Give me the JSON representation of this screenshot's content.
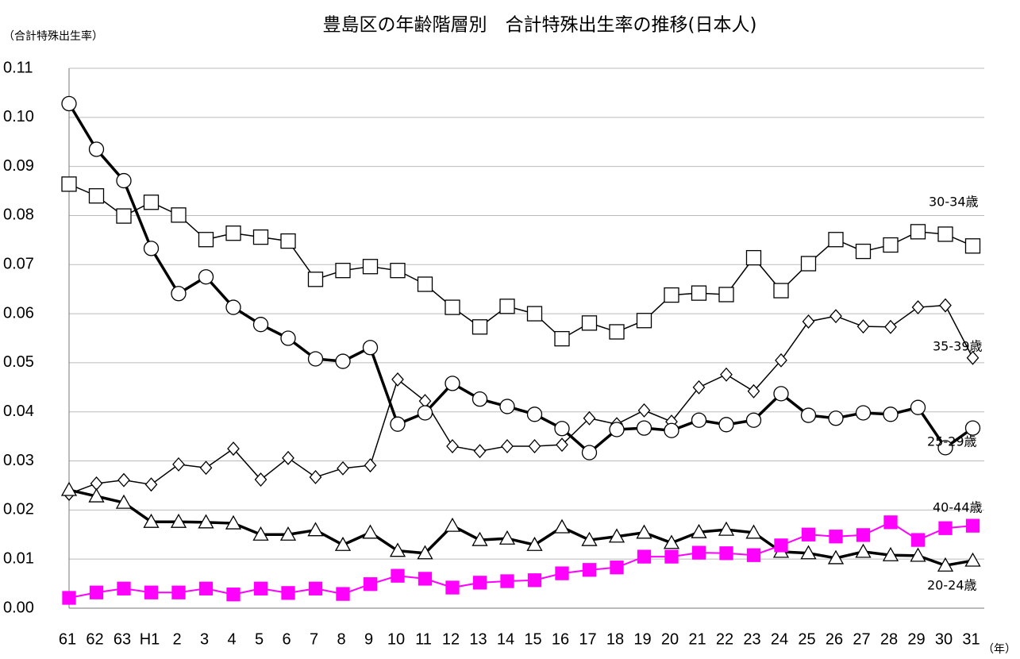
{
  "chart_data": {
    "type": "line",
    "title": "豊島区の年齢階層別　合計特殊出生率の推移(日本人)",
    "y_label": "（合計特殊出生率）",
    "x_label": "（年）",
    "categories": [
      "61",
      "62",
      "63",
      "H1",
      "2",
      "3",
      "4",
      "5",
      "6",
      "7",
      "8",
      "9",
      "10",
      "11",
      "12",
      "13",
      "14",
      "15",
      "16",
      "17",
      "18",
      "19",
      "20",
      "21",
      "22",
      "23",
      "24",
      "25",
      "26",
      "27",
      "28",
      "29",
      "30",
      "31"
    ],
    "ylim": [
      0,
      0.11
    ],
    "yticks": [
      {
        "value": 0,
        "label": "0.00"
      },
      0.01,
      0.02,
      0.03,
      0.04,
      0.05,
      0.06,
      0.07,
      0.08,
      0.09,
      {
        "value": 0.1,
        "label": "0.10"
      },
      0.11
    ],
    "grid": true,
    "series": [
      {
        "name": "30-34歳",
        "color": "#000000",
        "marker": "square",
        "line_width": 1.5,
        "values": [
          0.0864,
          0.084,
          0.0799,
          0.0827,
          0.0801,
          0.0751,
          0.0764,
          0.0756,
          0.0748,
          0.067,
          0.0688,
          0.0696,
          0.0688,
          0.066,
          0.0613,
          0.0573,
          0.0615,
          0.06,
          0.0549,
          0.0581,
          0.0563,
          0.0586,
          0.0638,
          0.0642,
          0.0639,
          0.0714,
          0.0647,
          0.0702,
          0.0751,
          0.0727,
          0.074,
          0.0767,
          0.0762,
          0.0738
        ]
      },
      {
        "name": "35-39歳",
        "color": "#000000",
        "marker": "diamond",
        "line_width": 1.5,
        "values": [
          0.0233,
          0.0254,
          0.0261,
          0.0252,
          0.0293,
          0.0286,
          0.0325,
          0.0262,
          0.0306,
          0.0267,
          0.0285,
          0.0291,
          0.0466,
          0.0422,
          0.033,
          0.032,
          0.033,
          0.033,
          0.0333,
          0.0387,
          0.0375,
          0.0403,
          0.038,
          0.045,
          0.0476,
          0.0442,
          0.0505,
          0.0584,
          0.0595,
          0.0574,
          0.0573,
          0.0613,
          0.0617,
          0.051
        ]
      },
      {
        "name": "25-29歳",
        "color": "#000000",
        "marker": "circle",
        "line_width": 3.5,
        "values": [
          0.1028,
          0.0935,
          0.0871,
          0.0733,
          0.0641,
          0.0675,
          0.0613,
          0.0578,
          0.055,
          0.0508,
          0.0503,
          0.0531,
          0.0375,
          0.0398,
          0.0458,
          0.0426,
          0.0411,
          0.0395,
          0.0366,
          0.0317,
          0.0364,
          0.0367,
          0.0362,
          0.0383,
          0.0374,
          0.0383,
          0.0437,
          0.0393,
          0.0387,
          0.0398,
          0.0395,
          0.0409,
          0.0327,
          0.0367
        ]
      },
      {
        "name": "40-44歳",
        "color": "#000000",
        "marker": "triangle",
        "line_width": 3.5,
        "values": [
          0.0241,
          0.0228,
          0.0215,
          0.0176,
          0.0176,
          0.0175,
          0.0173,
          0.015,
          0.015,
          0.0159,
          0.0129,
          0.0154,
          0.0117,
          0.0112,
          0.0168,
          0.0139,
          0.0142,
          0.0129,
          0.0165,
          0.0139,
          0.0146,
          0.0154,
          0.0133,
          0.0155,
          0.016,
          0.0154,
          0.0115,
          0.0112,
          0.0102,
          0.0115,
          0.0108,
          0.0107,
          0.0087,
          0.0097
        ]
      },
      {
        "name": "20-24歳",
        "color": "#ff00ff",
        "marker": "filled-square",
        "line_width": 2,
        "values": [
          0.0021,
          0.0032,
          0.004,
          0.0032,
          0.0032,
          0.004,
          0.0028,
          0.004,
          0.0031,
          0.004,
          0.0029,
          0.0049,
          0.0066,
          0.006,
          0.0042,
          0.0052,
          0.0055,
          0.0057,
          0.0071,
          0.0078,
          0.0083,
          0.0105,
          0.0105,
          0.0113,
          0.0112,
          0.0108,
          0.0128,
          0.015,
          0.0146,
          0.0149,
          0.0175,
          0.0139,
          0.0163,
          0.0168
        ]
      }
    ]
  }
}
